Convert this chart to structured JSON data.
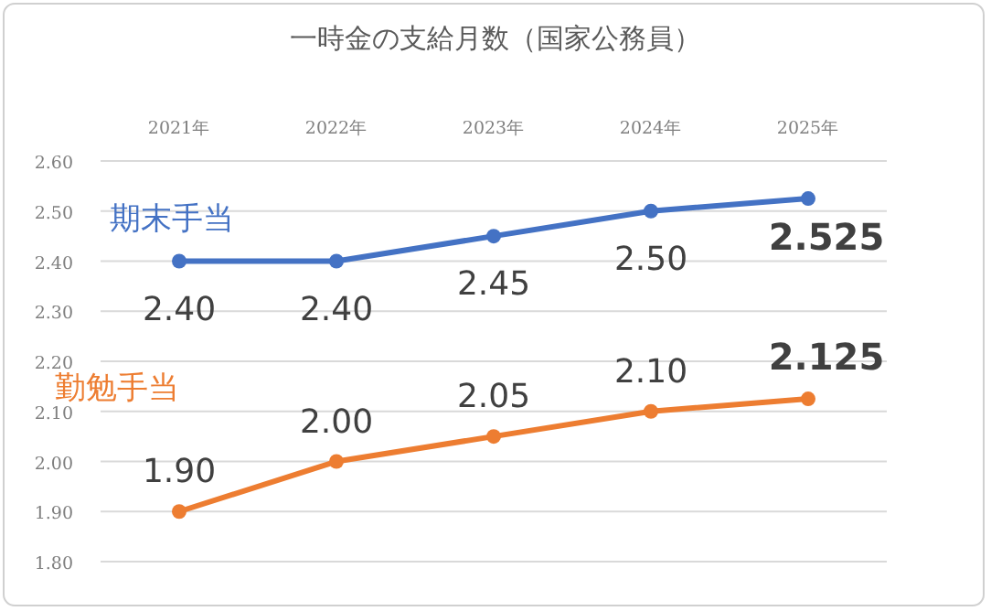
{
  "chart_data": {
    "type": "line",
    "title": "一時金の支給月数（国家公務員）",
    "categories": [
      "2021年",
      "2022年",
      "2023年",
      "2024年",
      "2025年"
    ],
    "series": [
      {
        "name": "期末手当",
        "color": "#4472c4",
        "values": [
          2.4,
          2.4,
          2.45,
          2.5,
          2.525
        ],
        "value_labels": [
          "2.40",
          "2.40",
          "2.45",
          "2.50",
          "2.525"
        ]
      },
      {
        "name": "勤勉手当",
        "color": "#ed7d31",
        "values": [
          1.9,
          2.0,
          2.05,
          2.1,
          2.125
        ],
        "value_labels": [
          "1.90",
          "2.00",
          "2.05",
          "2.10",
          "2.125"
        ]
      }
    ],
    "ylim": [
      1.8,
      2.6
    ],
    "yticks": [
      {
        "value": 1.8,
        "label": "1.80"
      },
      {
        "value": 1.9,
        "label": "1.90"
      },
      {
        "value": 2.0,
        "label": "2.00"
      },
      {
        "value": 2.1,
        "label": "2.10"
      },
      {
        "value": 2.2,
        "label": "2.20"
      },
      {
        "value": 2.3,
        "label": "2.30"
      },
      {
        "value": 2.4,
        "label": "2.40"
      },
      {
        "value": 2.5,
        "label": "2.50"
      },
      {
        "value": 2.6,
        "label": "2.60"
      }
    ],
    "grid": "y",
    "marker": "circle",
    "line_style": "solid"
  }
}
